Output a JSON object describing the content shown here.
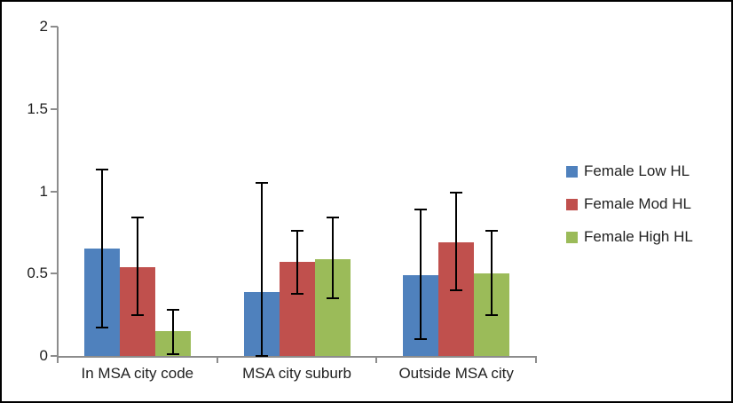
{
  "chart_data": {
    "type": "bar",
    "categories": [
      "In MSA city code",
      "MSA city suburb",
      "Outside MSA city"
    ],
    "series": [
      {
        "name": "Female Low HL",
        "color": "#4f81bd",
        "values": [
          0.65,
          0.39,
          0.49
        ],
        "error_low": [
          0.17,
          0.0,
          0.1
        ],
        "error_high": [
          1.13,
          1.05,
          0.89
        ]
      },
      {
        "name": "Female Mod HL",
        "color": "#c0504d",
        "values": [
          0.54,
          0.57,
          0.69
        ],
        "error_low": [
          0.25,
          0.38,
          0.4
        ],
        "error_high": [
          0.84,
          0.76,
          0.99
        ]
      },
      {
        "name": "Female High HL",
        "color": "#9bbb59",
        "values": [
          0.15,
          0.59,
          0.5
        ],
        "error_low": [
          0.01,
          0.35,
          0.25
        ],
        "error_high": [
          0.28,
          0.84,
          0.76
        ]
      }
    ],
    "y_ticks": [
      "0",
      "0.5",
      "1",
      "1.5",
      "2"
    ],
    "y_tick_values": [
      0,
      0.5,
      1,
      1.5,
      2
    ],
    "ylim": [
      0,
      2
    ],
    "xlabel": "",
    "ylabel": "",
    "title": "",
    "grid": false,
    "legend_position": "right",
    "error_bar_color": "#000000",
    "axis_color": "#8c8c8c"
  }
}
